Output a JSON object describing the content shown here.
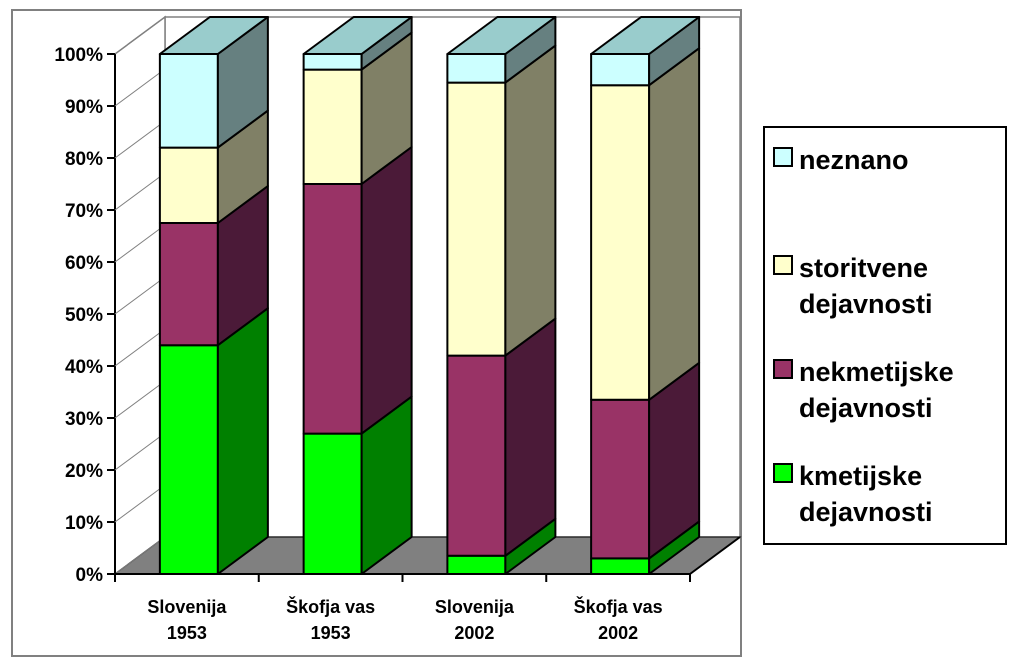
{
  "chart_data": {
    "type": "bar",
    "stacked": true,
    "three_d": true,
    "categories": [
      "Slovenija\n1953",
      "Škofja vas\n1953",
      "Slovenija\n2002",
      "Škofja vas\n2002"
    ],
    "series": [
      {
        "name": "kmetijske\ndejavnosti",
        "values": [
          44,
          27,
          3.5,
          3
        ],
        "color": "#00ff00",
        "side_color": "#008000"
      },
      {
        "name": "nekmetijske\ndejavnosti",
        "values": [
          23.5,
          48,
          38.5,
          30.5
        ],
        "color": "#993366",
        "side_color": "#4b1a38"
      },
      {
        "name": "storitvene\ndejavnosti",
        "values": [
          14.5,
          22,
          52.5,
          60.5
        ],
        "color": "#ffffcc",
        "side_color": "#808066"
      },
      {
        "name": "neznano",
        "values": [
          18,
          3,
          5.5,
          6
        ],
        "color": "#ccffff",
        "side_color": "#668080"
      }
    ],
    "yticks": [
      "0%",
      "10%",
      "20%",
      "30%",
      "40%",
      "50%",
      "60%",
      "70%",
      "80%",
      "90%",
      "100%"
    ],
    "ylim": [
      0,
      100
    ],
    "legend_position": "right",
    "legend_order": [
      3,
      2,
      1,
      0
    ]
  }
}
